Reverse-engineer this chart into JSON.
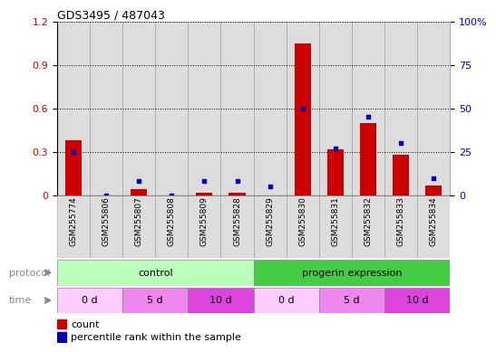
{
  "title": "GDS3495 / 487043",
  "samples": [
    "GSM255774",
    "GSM255806",
    "GSM255807",
    "GSM255808",
    "GSM255809",
    "GSM255828",
    "GSM255829",
    "GSM255830",
    "GSM255831",
    "GSM255832",
    "GSM255833",
    "GSM255834"
  ],
  "count_values": [
    0.38,
    0.0,
    0.04,
    0.0,
    0.02,
    0.02,
    0.0,
    1.05,
    0.32,
    0.5,
    0.28,
    0.07
  ],
  "percentile_values": [
    25,
    0,
    8,
    0,
    8,
    8,
    5,
    50,
    27,
    45,
    30,
    10
  ],
  "ylim_left": [
    0,
    1.2
  ],
  "ylim_right": [
    0,
    100
  ],
  "yticks_left": [
    0,
    0.3,
    0.6,
    0.9,
    1.2
  ],
  "yticks_right": [
    0,
    25,
    50,
    75,
    100
  ],
  "bar_color": "#cc0000",
  "dot_color": "#0000bb",
  "protocol_groups": [
    {
      "label": "control",
      "start": 0,
      "end": 6,
      "color": "#bbffbb"
    },
    {
      "label": "progerin expression",
      "start": 6,
      "end": 12,
      "color": "#44cc44"
    }
  ],
  "time_groups": [
    {
      "label": "0 d",
      "start": 0,
      "end": 2,
      "color": "#ffbbff"
    },
    {
      "label": "5 d",
      "start": 2,
      "end": 4,
      "color": "#ee77ee"
    },
    {
      "label": "10 d",
      "start": 4,
      "end": 6,
      "color": "#dd44dd"
    },
    {
      "label": "0 d",
      "start": 6,
      "end": 8,
      "color": "#ffbbff"
    },
    {
      "label": "5 d",
      "start": 8,
      "end": 10,
      "color": "#ee77ee"
    },
    {
      "label": "10 d",
      "start": 10,
      "end": 12,
      "color": "#dd44dd"
    }
  ],
  "legend_count_label": "count",
  "legend_pct_label": "percentile rank within the sample",
  "protocol_label": "protocol",
  "time_label": "time",
  "bg_color": "#ffffff",
  "tick_label_color_left": "#cc0000",
  "tick_label_color_right": "#0000bb",
  "sample_box_color": "#dddddd",
  "sample_box_edge": "#999999"
}
